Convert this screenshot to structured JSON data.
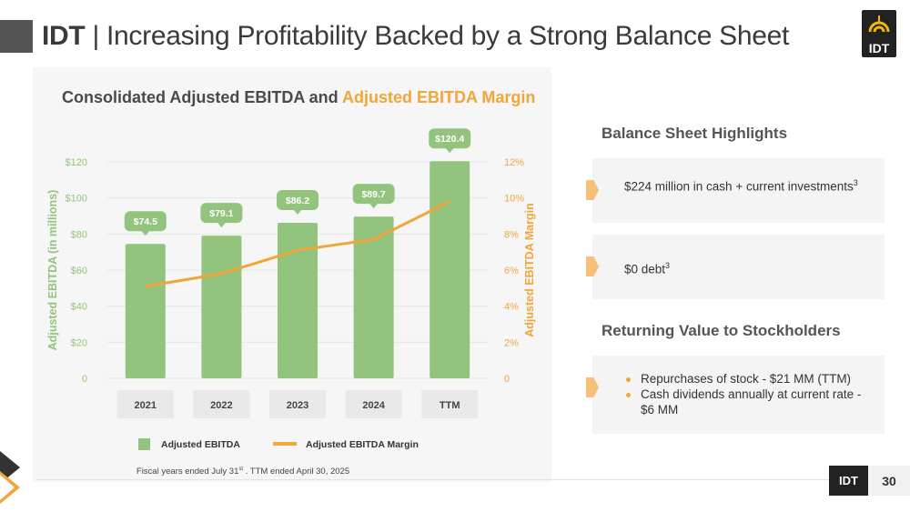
{
  "header": {
    "brand": "IDT",
    "separator": " | ",
    "title": "Increasing Profitability Backed by a Strong Balance Sheet",
    "logo_text": "IDT"
  },
  "colors": {
    "bar": "#93c47d",
    "line": "#f0a63a",
    "left_axis": "#93c47d",
    "right_axis": "#f0a63a",
    "label_bubble": "#93c47d",
    "marker": "#f7c07a"
  },
  "chart_data": {
    "type": "bar",
    "title_part1": "Consolidated Adjusted EBITDA and ",
    "title_part2": "Adjusted EBITDA Margin",
    "categories": [
      "2021",
      "2022",
      "2023",
      "2024",
      "TTM"
    ],
    "series": [
      {
        "name": "Adjusted EBITDA",
        "type": "bar",
        "axis": "left",
        "values": [
          74.5,
          79.1,
          86.2,
          89.7,
          120.4
        ],
        "labels": [
          "$74.5",
          "$79.1",
          "$86.2",
          "$89.7",
          "$120.4"
        ]
      },
      {
        "name": "Adjusted EBITDA Margin",
        "type": "line",
        "axis": "right",
        "values": [
          5.1,
          5.8,
          7.1,
          7.7,
          9.8
        ]
      }
    ],
    "ylabel_left": "Adjusted EBITDA (in millions)",
    "ylabel_right": "Adjusted EBITDA Margin",
    "ylim_left": [
      0,
      120
    ],
    "ylim_right": [
      0,
      12
    ],
    "yticks_left": [
      "0",
      "$20",
      "$40",
      "$60",
      "$80",
      "$100",
      "$120"
    ],
    "yticks_right": [
      "0",
      "2%",
      "4%",
      "6%",
      "8%",
      "10%",
      "12%"
    ],
    "legend_position": "bottom",
    "grid": true
  },
  "footnote": {
    "pre": "Fiscal years  ended July 31",
    "sup": "st",
    "post": " .  TTM ended April 30, 2025"
  },
  "sidebar": {
    "balance_heading": "Balance Sheet Highlights",
    "cash_text": "$224 million in cash + current investments",
    "cash_sup": "3",
    "debt_text": "$0 debt",
    "debt_sup": "3",
    "returning_heading": "Returning Value to Stockholders",
    "bullets": [
      "Repurchases of stock - $21 MM (TTM)",
      "Cash dividends annually at current rate - $6 MM"
    ]
  },
  "footer": {
    "tag": "IDT",
    "page_number": "30"
  }
}
